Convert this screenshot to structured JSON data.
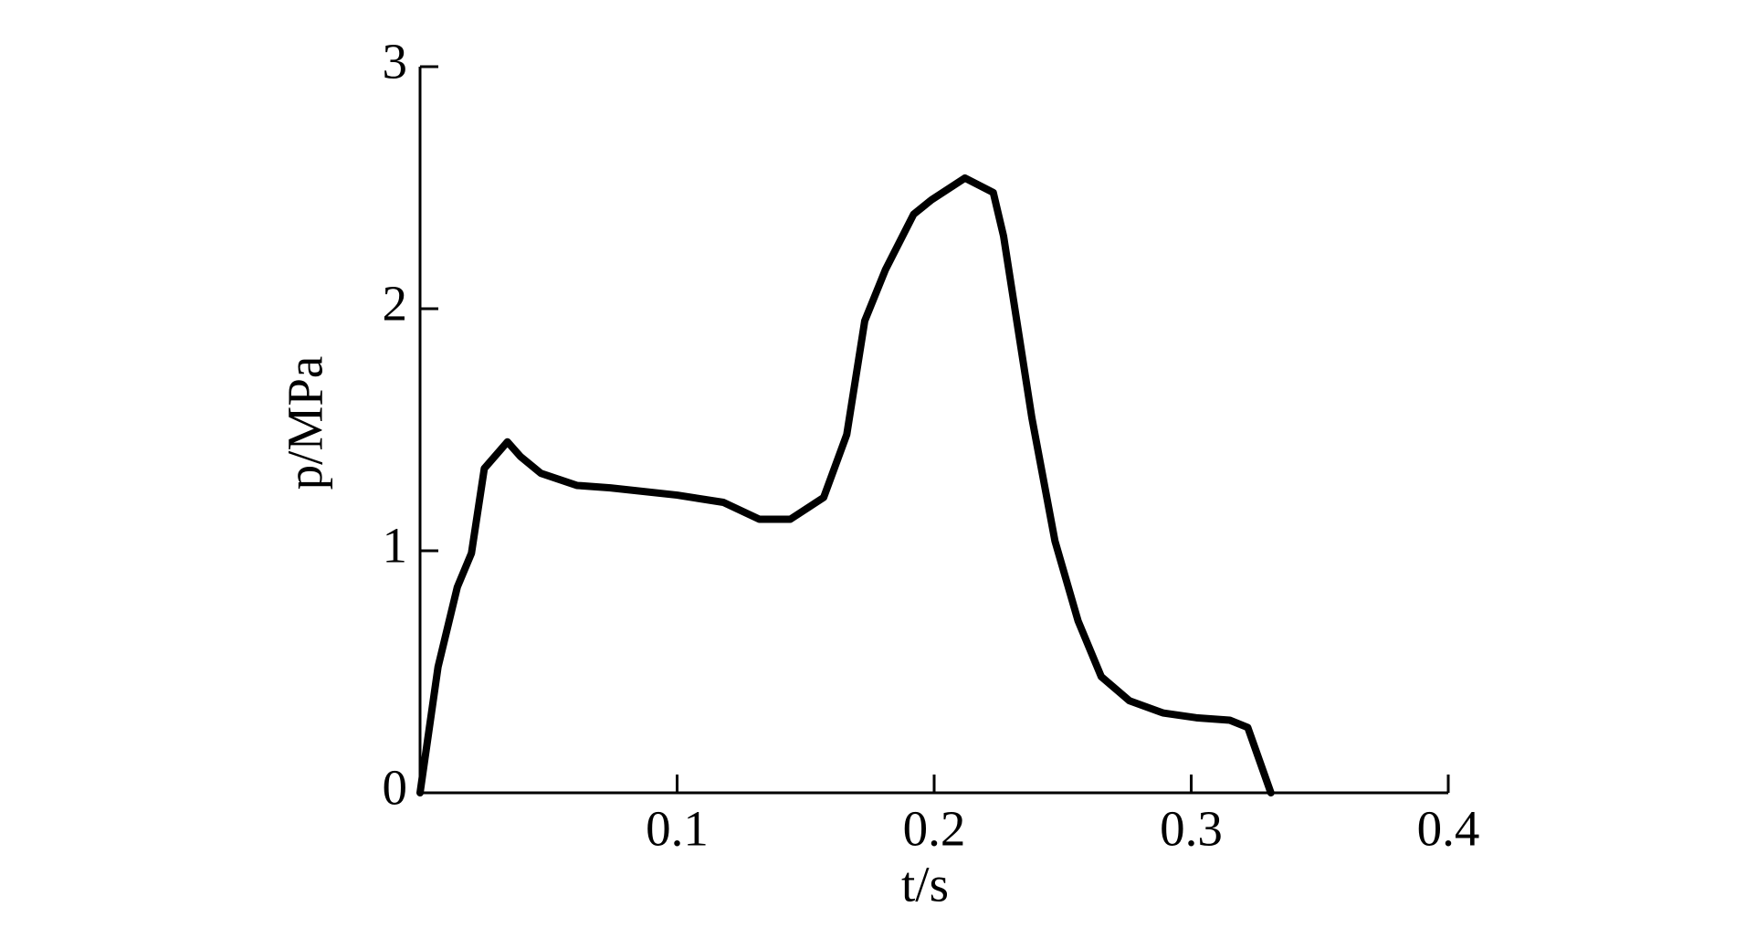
{
  "chart_data": {
    "type": "line",
    "x_label": "t/s",
    "y_label": "p/MPa",
    "xlim": [
      0,
      0.4
    ],
    "ylim": [
      0,
      3
    ],
    "xticks": [
      0.1,
      0.2,
      0.3,
      0.4
    ],
    "yticks": [
      0,
      1,
      2,
      3
    ],
    "series": [
      {
        "color": "#000000",
        "x": [
          0,
          0.007,
          0.0145,
          0.02,
          0.025,
          0.034,
          0.039,
          0.047,
          0.061,
          0.074,
          0.1,
          0.118,
          0.132,
          0.144,
          0.157,
          0.166,
          0.173,
          0.181,
          0.192,
          0.199,
          0.212,
          0.223,
          0.227,
          0.238,
          0.247,
          0.256,
          0.265,
          0.276,
          0.289,
          0.302,
          0.315,
          0.322,
          0.326,
          0.331
        ],
        "values": [
          0,
          0.52,
          0.85,
          0.99,
          1.34,
          1.45,
          1.39,
          1.32,
          1.27,
          1.26,
          1.23,
          1.2,
          1.13,
          1.13,
          1.22,
          1.48,
          1.95,
          2.16,
          2.39,
          2.45,
          2.54,
          2.48,
          2.3,
          1.55,
          1.04,
          0.71,
          0.48,
          0.38,
          0.33,
          0.31,
          0.3,
          0.27,
          0.15,
          0
        ]
      }
    ]
  }
}
